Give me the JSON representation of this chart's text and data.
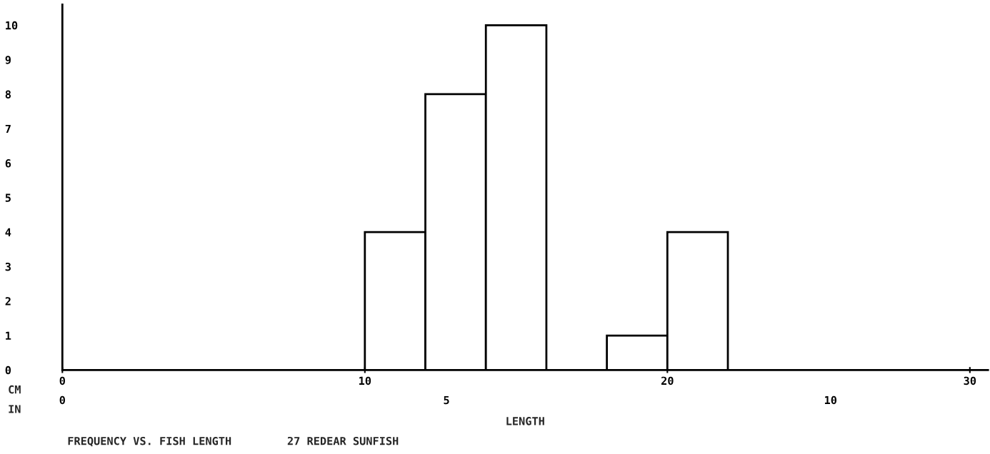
{
  "chart_data": {
    "type": "histogram",
    "title": "FREQUENCY VS. FISH LENGTH",
    "subtitle": "27 REDEAR SUNFISH",
    "xlabel": "LENGTH",
    "annotations": [
      "CM",
      "IN"
    ],
    "bins": [
      10,
      12,
      14,
      16,
      18,
      20,
      22
    ],
    "values": [
      4,
      8,
      10,
      0,
      1,
      4
    ],
    "color": "#ffffff",
    "xlim": [
      0,
      30.6
    ],
    "xticks": [
      0,
      10,
      20,
      30
    ],
    "x2lim": [
      0,
      12.05
    ],
    "x2ticks": [
      0,
      5,
      10
    ],
    "ylim": [
      0,
      10.6
    ],
    "yticks": [
      0,
      1,
      2,
      3,
      4,
      5,
      6,
      7,
      8,
      9,
      10
    ],
    "grid": false,
    "legend": false
  }
}
